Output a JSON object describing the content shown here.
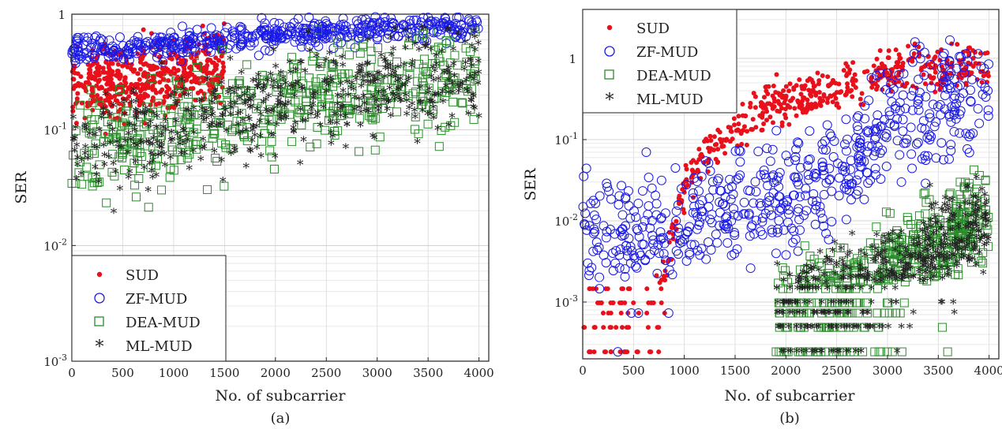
{
  "figure": {
    "panels": [
      {
        "caption": "(a)",
        "xlabel": "No. of subcarrier",
        "ylabel": "SER",
        "legend_position": "bottom-left",
        "legend": [
          "SUD",
          "ZF-MUD",
          "DEA-MUD",
          "ML-MUD"
        ]
      },
      {
        "caption": "(b)",
        "xlabel": "No. of subcarrier",
        "ylabel": "SER",
        "legend_position": "top-left",
        "legend": [
          "SUD",
          "ZF-MUD",
          "DEA-MUD",
          "ML-MUD"
        ]
      }
    ]
  },
  "chart_data": [
    {
      "type": "scatter",
      "caption": "(a)",
      "xlabel": "No. of subcarrier",
      "ylabel": "SER",
      "xlim": [
        0,
        4096
      ],
      "ylim": [
        0.001,
        1
      ],
      "yscale": "log",
      "xticks": [
        0,
        500,
        1000,
        1500,
        2000,
        2500,
        3000,
        3500,
        4000
      ],
      "yticks": [
        0.001,
        0.01,
        0.1,
        1
      ],
      "ytick_labels": [
        "10^-3",
        "10^-2",
        "10^-1",
        "1"
      ],
      "grid": true,
      "legend_position": "bottom-left",
      "series": [
        {
          "name": "SUD",
          "marker": "dot",
          "color": "#e8101a",
          "x": [
            0,
            250,
            500,
            750,
            1000,
            1250,
            1500
          ],
          "y": [
            0.22,
            0.24,
            0.26,
            0.28,
            0.31,
            0.34,
            0.38
          ]
        },
        {
          "name": "ZF-MUD",
          "marker": "circle",
          "color": "#1a1ae6",
          "x": [
            0,
            500,
            1000,
            1500,
            2000,
            2500,
            3000,
            3500,
            4000
          ],
          "y": [
            0.5,
            0.52,
            0.56,
            0.6,
            0.65,
            0.7,
            0.76,
            0.8,
            0.82
          ]
        },
        {
          "name": "DEA-MUD",
          "marker": "square",
          "color": "#2a8c2a",
          "x": [
            0,
            500,
            1000,
            1500,
            2000,
            2500,
            3000,
            3500,
            4000
          ],
          "y": [
            0.062,
            0.08,
            0.1,
            0.13,
            0.16,
            0.2,
            0.24,
            0.28,
            0.3
          ]
        },
        {
          "name": "ML-MUD",
          "marker": "asterisk",
          "color": "#f5c400",
          "x": [
            0,
            500,
            1000,
            1500,
            2000,
            2500,
            3000,
            3500,
            4000
          ],
          "y": [
            0.065,
            0.082,
            0.1,
            0.13,
            0.16,
            0.2,
            0.24,
            0.28,
            0.3
          ]
        }
      ]
    },
    {
      "type": "scatter",
      "caption": "(b)",
      "xlabel": "No. of subcarrier",
      "ylabel": "SER",
      "xlim": [
        0,
        4096
      ],
      "ylim": [
        0.0002,
        4
      ],
      "yscale": "log",
      "xticks": [
        0,
        500,
        1000,
        1500,
        2000,
        2500,
        3000,
        3500,
        4000
      ],
      "yticks": [
        0.001,
        0.01,
        0.1,
        1
      ],
      "ytick_labels": [
        "10^-3",
        "10^-2",
        "10^-1",
        "1"
      ],
      "grid": true,
      "legend_position": "top-left",
      "series": [
        {
          "name": "SUD",
          "marker": "dot",
          "color": "#e8101a",
          "x": [
            0,
            500,
            800,
            1000,
            1250,
            1500,
            1750,
            2000,
            2500,
            3000,
            3500,
            4000
          ],
          "y": [
            0.00024,
            0.00024,
            0.002,
            0.03,
            0.08,
            0.12,
            0.25,
            0.3,
            0.4,
            0.7,
            0.75,
            0.8
          ]
        },
        {
          "name": "ZF-MUD",
          "marker": "circle",
          "color": "#1a1ae6",
          "x": [
            0,
            500,
            1000,
            1500,
            2000,
            2500,
            3000,
            3500,
            4000
          ],
          "y": [
            0.006,
            0.007,
            0.01,
            0.015,
            0.02,
            0.04,
            0.15,
            0.3,
            0.4
          ]
        },
        {
          "name": "DEA-MUD",
          "marker": "square",
          "color": "#2a8c2a",
          "x": [
            1900,
            2400,
            2900,
            3400,
            3900,
            4000
          ],
          "y": [
            0.0008,
            0.001,
            0.002,
            0.005,
            0.01,
            0.01
          ]
        },
        {
          "name": "ML-MUD",
          "marker": "asterisk",
          "color": "#f5c400",
          "x": [
            1900,
            2400,
            2900,
            3400,
            3900,
            4000
          ],
          "y": [
            0.0007,
            0.0009,
            0.0018,
            0.004,
            0.008,
            0.008
          ]
        }
      ]
    }
  ]
}
